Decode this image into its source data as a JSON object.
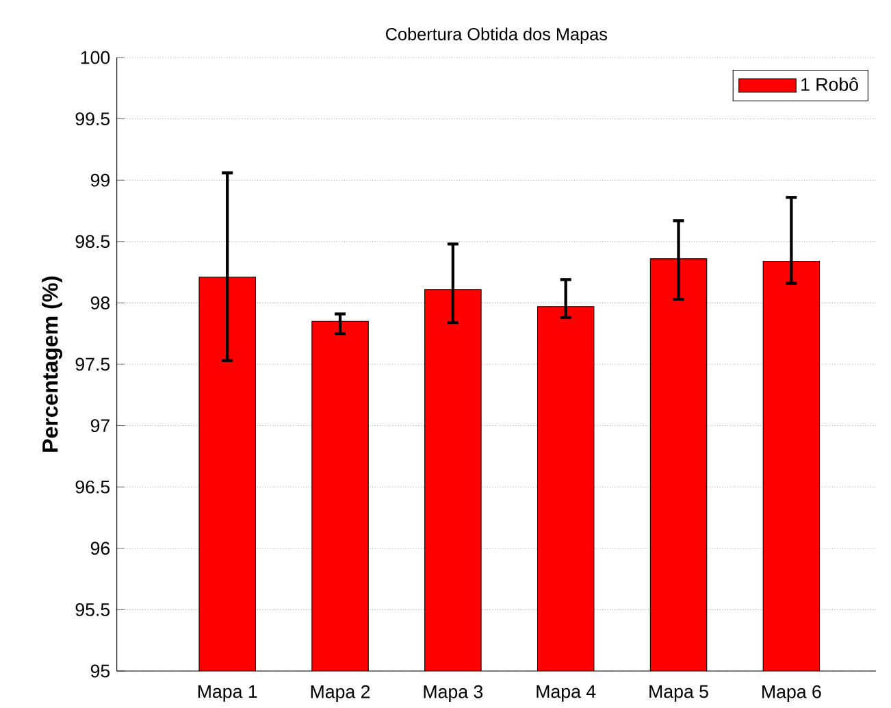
{
  "chart_data": {
    "type": "bar",
    "title": "Cobertura Obtida dos Mapas",
    "ylabel": "Percentagem (%)",
    "categories": [
      "Mapa 1",
      "Mapa 2",
      "Mapa 3",
      "Mapa 4",
      "Mapa 5",
      "Mapa 6"
    ],
    "series": [
      {
        "name": "1 Robô",
        "color": "#ff0000",
        "values": [
          98.21,
          97.85,
          98.11,
          97.97,
          98.36,
          98.34
        ],
        "errors": [
          [
            97.53,
            99.06
          ],
          [
            97.75,
            97.91
          ],
          [
            97.84,
            98.48
          ],
          [
            97.88,
            98.19
          ],
          [
            98.03,
            98.67
          ],
          [
            98.16,
            98.86
          ]
        ]
      }
    ],
    "ylim": [
      95,
      100
    ],
    "yticks": [
      95,
      95.5,
      96,
      96.5,
      97,
      97.5,
      98,
      98.5,
      99,
      99.5,
      100
    ],
    "grid": "y",
    "legend": "top right"
  }
}
